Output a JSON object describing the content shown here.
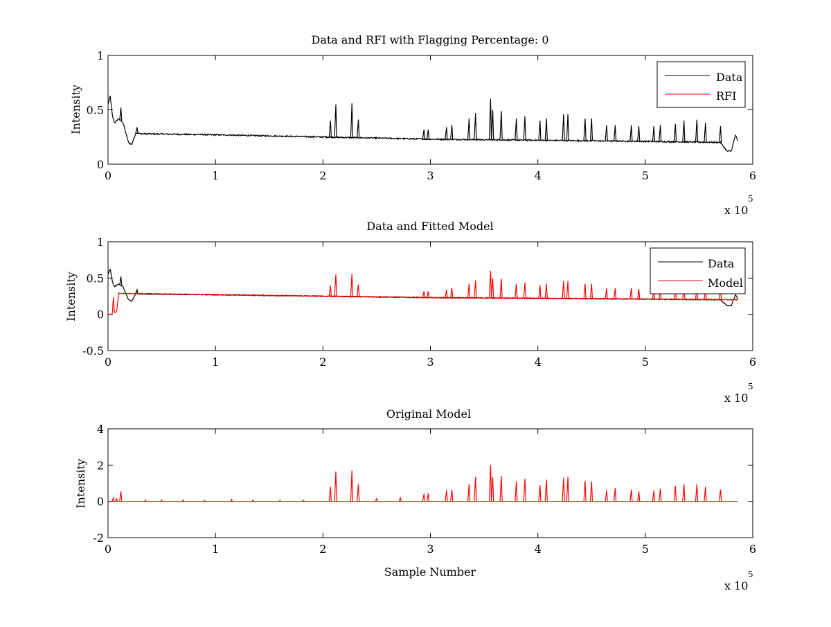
{
  "figure": {
    "background": "#ffffff",
    "colors": {
      "data": "#000000",
      "rfi": "#ff0000",
      "model": "#ff0000"
    }
  },
  "chart_data": [
    {
      "type": "line",
      "title": "Data and RFI with Flagging Percentage: 0",
      "xlabel": "",
      "ylabel": "Intensity",
      "xlim": [
        0,
        6
      ],
      "ylim": [
        0,
        1
      ],
      "xticks": [
        "0",
        "1",
        "2",
        "3",
        "4",
        "5",
        "6"
      ],
      "yticks": [
        "0",
        "0.5",
        "1"
      ],
      "x_multiplier": {
        "base": "x 10",
        "exponent": "5"
      },
      "legend": {
        "position": "top-right",
        "entries": [
          "Data",
          "RFI"
        ]
      },
      "series": [
        {
          "name": "Data",
          "color": "#000000",
          "baseline": [
            [
              0.0,
              0.55
            ],
            [
              0.02,
              0.63
            ],
            [
              0.04,
              0.45
            ],
            [
              0.06,
              0.38
            ],
            [
              0.1,
              0.42
            ],
            [
              0.14,
              0.38
            ],
            [
              0.19,
              0.2
            ],
            [
              0.22,
              0.18
            ],
            [
              0.26,
              0.29
            ],
            [
              0.3,
              0.28
            ],
            [
              1.0,
              0.27
            ],
            [
              2.0,
              0.25
            ],
            [
              3.0,
              0.23
            ],
            [
              4.0,
              0.22
            ],
            [
              5.0,
              0.21
            ],
            [
              5.7,
              0.2
            ],
            [
              5.76,
              0.12
            ],
            [
              5.8,
              0.12
            ],
            [
              5.84,
              0.27
            ],
            [
              5.86,
              0.21
            ]
          ],
          "spikes": [
            [
              0.12,
              0.52
            ],
            [
              0.27,
              0.34
            ],
            [
              2.07,
              0.4
            ],
            [
              2.12,
              0.55
            ],
            [
              2.27,
              0.56
            ],
            [
              2.33,
              0.41
            ],
            [
              2.94,
              0.32
            ],
            [
              2.98,
              0.32
            ],
            [
              3.15,
              0.34
            ],
            [
              3.2,
              0.36
            ],
            [
              3.36,
              0.42
            ],
            [
              3.42,
              0.47
            ],
            [
              3.56,
              0.6
            ],
            [
              3.58,
              0.5
            ],
            [
              3.66,
              0.49
            ],
            [
              3.8,
              0.42
            ],
            [
              3.88,
              0.44
            ],
            [
              4.02,
              0.4
            ],
            [
              4.08,
              0.42
            ],
            [
              4.24,
              0.46
            ],
            [
              4.28,
              0.46
            ],
            [
              4.44,
              0.42
            ],
            [
              4.5,
              0.42
            ],
            [
              4.64,
              0.36
            ],
            [
              4.72,
              0.36
            ],
            [
              4.87,
              0.36
            ],
            [
              4.94,
              0.35
            ],
            [
              5.08,
              0.35
            ],
            [
              5.14,
              0.36
            ],
            [
              5.28,
              0.37
            ],
            [
              5.36,
              0.4
            ],
            [
              5.48,
              0.41
            ],
            [
              5.56,
              0.38
            ],
            [
              5.7,
              0.35
            ]
          ]
        },
        {
          "name": "RFI",
          "color": "#ff0000",
          "points": []
        }
      ]
    },
    {
      "type": "line",
      "title": "Data and Fitted Model",
      "xlabel": "",
      "ylabel": "Intensity",
      "xlim": [
        0,
        6
      ],
      "ylim": [
        -0.5,
        1
      ],
      "xticks": [
        "0",
        "1",
        "2",
        "3",
        "4",
        "5",
        "6"
      ],
      "yticks": [
        "-0.5",
        "0",
        "0.5",
        "1"
      ],
      "x_multiplier": {
        "base": "x 10",
        "exponent": "5"
      },
      "legend": {
        "position": "top-right",
        "entries": [
          "Data",
          "Model"
        ]
      },
      "series": [
        {
          "name": "Data",
          "color": "#000000",
          "baseline": [
            [
              0.0,
              0.55
            ],
            [
              0.02,
              0.63
            ],
            [
              0.04,
              0.45
            ],
            [
              0.06,
              0.38
            ],
            [
              0.1,
              0.42
            ],
            [
              0.14,
              0.38
            ],
            [
              0.19,
              0.2
            ],
            [
              0.22,
              0.18
            ],
            [
              0.26,
              0.29
            ],
            [
              0.3,
              0.28
            ],
            [
              1.0,
              0.27
            ],
            [
              2.0,
              0.25
            ],
            [
              3.0,
              0.23
            ],
            [
              4.0,
              0.22
            ],
            [
              5.0,
              0.21
            ],
            [
              5.7,
              0.2
            ],
            [
              5.76,
              0.12
            ],
            [
              5.8,
              0.12
            ],
            [
              5.84,
              0.27
            ],
            [
              5.86,
              0.21
            ]
          ],
          "spikes": [
            [
              0.12,
              0.52
            ],
            [
              0.27,
              0.34
            ]
          ]
        },
        {
          "name": "Model",
          "color": "#ff0000",
          "baseline": [
            [
              0.0,
              0.0
            ],
            [
              0.04,
              0.0
            ],
            [
              0.05,
              0.24
            ],
            [
              0.06,
              0.02
            ],
            [
              0.08,
              0.04
            ],
            [
              0.1,
              0.29
            ],
            [
              1.0,
              0.27
            ],
            [
              2.0,
              0.25
            ],
            [
              3.0,
              0.23
            ],
            [
              4.0,
              0.22
            ],
            [
              5.0,
              0.21
            ],
            [
              5.86,
              0.2
            ]
          ],
          "spikes": [
            [
              2.07,
              0.4
            ],
            [
              2.12,
              0.55
            ],
            [
              2.27,
              0.56
            ],
            [
              2.33,
              0.41
            ],
            [
              2.94,
              0.32
            ],
            [
              2.98,
              0.32
            ],
            [
              3.15,
              0.34
            ],
            [
              3.2,
              0.36
            ],
            [
              3.36,
              0.42
            ],
            [
              3.42,
              0.47
            ],
            [
              3.56,
              0.6
            ],
            [
              3.58,
              0.5
            ],
            [
              3.66,
              0.49
            ],
            [
              3.8,
              0.42
            ],
            [
              3.88,
              0.44
            ],
            [
              4.02,
              0.4
            ],
            [
              4.08,
              0.42
            ],
            [
              4.24,
              0.46
            ],
            [
              4.28,
              0.46
            ],
            [
              4.44,
              0.42
            ],
            [
              4.5,
              0.42
            ],
            [
              4.64,
              0.36
            ],
            [
              4.72,
              0.36
            ],
            [
              4.87,
              0.36
            ],
            [
              4.94,
              0.35
            ],
            [
              5.08,
              0.35
            ],
            [
              5.14,
              0.36
            ],
            [
              5.28,
              0.37
            ],
            [
              5.36,
              0.4
            ],
            [
              5.48,
              0.41
            ],
            [
              5.56,
              0.38
            ],
            [
              5.7,
              0.35
            ]
          ]
        }
      ]
    },
    {
      "type": "line",
      "title": "Original Model",
      "xlabel": "Sample Number",
      "ylabel": "Intensity",
      "xlim": [
        0,
        6
      ],
      "ylim": [
        -2,
        4
      ],
      "xticks": [
        "0",
        "1",
        "2",
        "3",
        "4",
        "5",
        "6"
      ],
      "yticks": [
        "-2",
        "0",
        "2",
        "4"
      ],
      "x_multiplier": {
        "base": "x 10",
        "exponent": "5"
      },
      "legend": null,
      "series": [
        {
          "name": "",
          "color": "#ff0000",
          "baseline": [
            [
              0.0,
              0.0
            ],
            [
              5.86,
              0.0
            ]
          ],
          "spikes": [
            [
              0.05,
              0.2
            ],
            [
              0.08,
              0.15
            ],
            [
              0.12,
              0.55
            ],
            [
              0.35,
              0.06
            ],
            [
              0.5,
              0.06
            ],
            [
              0.7,
              0.06
            ],
            [
              0.9,
              0.05
            ],
            [
              1.15,
              0.1
            ],
            [
              1.35,
              0.06
            ],
            [
              1.6,
              0.05
            ],
            [
              1.82,
              0.06
            ],
            [
              2.07,
              0.8
            ],
            [
              2.12,
              1.65
            ],
            [
              2.27,
              1.7
            ],
            [
              2.33,
              0.95
            ],
            [
              2.5,
              0.15
            ],
            [
              2.72,
              0.2
            ],
            [
              2.94,
              0.4
            ],
            [
              2.98,
              0.45
            ],
            [
              3.15,
              0.6
            ],
            [
              3.2,
              0.65
            ],
            [
              3.36,
              0.95
            ],
            [
              3.42,
              1.35
            ],
            [
              3.56,
              2.0
            ],
            [
              3.58,
              1.35
            ],
            [
              3.66,
              1.4
            ],
            [
              3.8,
              1.1
            ],
            [
              3.88,
              1.25
            ],
            [
              4.02,
              0.9
            ],
            [
              4.08,
              1.2
            ],
            [
              4.24,
              1.3
            ],
            [
              4.28,
              1.35
            ],
            [
              4.44,
              1.15
            ],
            [
              4.5,
              1.1
            ],
            [
              4.64,
              0.6
            ],
            [
              4.72,
              0.75
            ],
            [
              4.87,
              0.65
            ],
            [
              4.94,
              0.55
            ],
            [
              5.08,
              0.6
            ],
            [
              5.14,
              0.7
            ],
            [
              5.28,
              0.85
            ],
            [
              5.36,
              0.95
            ],
            [
              5.48,
              0.95
            ],
            [
              5.56,
              0.8
            ],
            [
              5.7,
              0.65
            ]
          ]
        }
      ]
    }
  ]
}
